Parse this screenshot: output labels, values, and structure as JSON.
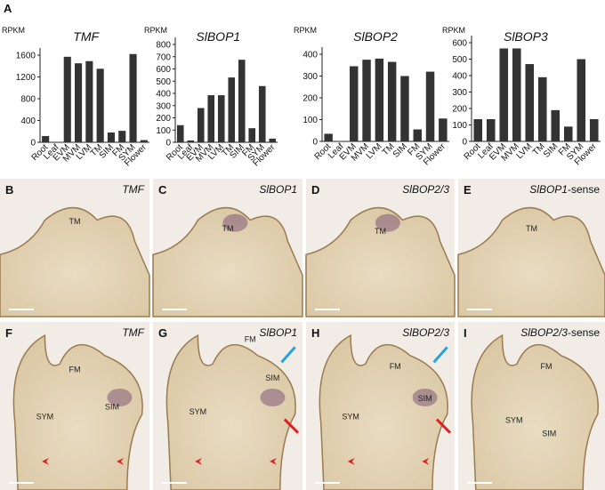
{
  "figure_label": "A",
  "chart_data": [
    {
      "type": "bar",
      "title": "TMF",
      "ylabel": "RPKM",
      "categories": [
        "Root",
        "Leaf",
        "EVM",
        "MVM",
        "LVM",
        "TM",
        "SIM",
        "FM",
        "SYM",
        "Flower"
      ],
      "values": [
        115,
        5,
        1570,
        1450,
        1490,
        1350,
        180,
        210,
        1620,
        40
      ],
      "color": "#333333",
      "ylim": [
        0,
        1600
      ],
      "yticks": [
        0,
        400,
        800,
        1200,
        1600
      ]
    },
    {
      "type": "bar",
      "title": "SlBOP1",
      "ylabel": "RPKM",
      "categories": [
        "Root",
        "Leaf",
        "EVM",
        "MVM",
        "LVM",
        "TM",
        "SIM",
        "FM",
        "SYM",
        "Flower"
      ],
      "values": [
        140,
        15,
        280,
        385,
        385,
        530,
        675,
        115,
        460,
        30
      ],
      "color": "#333333",
      "ylim": [
        0,
        800
      ],
      "yticks": [
        0,
        100,
        200,
        300,
        400,
        500,
        600,
        700,
        800
      ]
    },
    {
      "type": "bar",
      "title": "SlBOP2",
      "ylabel": "RPKM",
      "categories": [
        "Root",
        "Leaf",
        "EVM",
        "MVM",
        "LVM",
        "TM",
        "SIM",
        "FM",
        "SYM",
        "Flower"
      ],
      "values": [
        35,
        2,
        345,
        375,
        380,
        365,
        300,
        55,
        320,
        105
      ],
      "color": "#333333",
      "ylim": [
        0,
        400
      ],
      "yticks": [
        0,
        100,
        200,
        300,
        400
      ]
    },
    {
      "type": "bar",
      "title": "SlBOP3",
      "ylabel": "RPKM",
      "categories": [
        "Root",
        "Leaf",
        "EVM",
        "MVM",
        "LVM",
        "TM",
        "SIM",
        "FM",
        "SYM",
        "Flower"
      ],
      "values": [
        135,
        135,
        565,
        565,
        470,
        390,
        190,
        90,
        500,
        135
      ],
      "color": "#333333",
      "ylim": [
        0,
        600
      ],
      "yticks": [
        0,
        100,
        200,
        300,
        400,
        500,
        600
      ]
    }
  ],
  "panels": [
    {
      "letter": "B",
      "gene": "TMF",
      "labels": [
        "TM"
      ]
    },
    {
      "letter": "C",
      "gene": "SlBOP1",
      "labels": [
        "TM"
      ]
    },
    {
      "letter": "D",
      "gene": "SlBOP2/3",
      "labels": [
        "TM"
      ]
    },
    {
      "letter": "E",
      "gene": "SlBOP1",
      "suffix": "-sense",
      "labels": [
        "TM"
      ]
    },
    {
      "letter": "F",
      "gene": "TMF",
      "labels": [
        "FM",
        "SYM",
        "SIM"
      ]
    },
    {
      "letter": "G",
      "gene": "SlBOP1",
      "labels": [
        "FM",
        "SYM",
        "SIM"
      ]
    },
    {
      "letter": "H",
      "gene": "SlBOP2/3",
      "labels": [
        "FM",
        "SYM",
        "SIM"
      ]
    },
    {
      "letter": "I",
      "gene": "SlBOP2/3",
      "suffix": "-sense",
      "labels": [
        "FM",
        "SYM",
        "SIM"
      ]
    }
  ]
}
